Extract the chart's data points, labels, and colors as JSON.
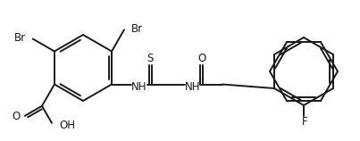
{
  "bg_color": "#ffffff",
  "line_color": "#1a1a1a",
  "line_width": 1.4,
  "font_size": 8.5,
  "fig_width": 4.03,
  "fig_height": 1.58,
  "dpi": 100,
  "xlim": [
    0,
    403
  ],
  "ylim": [
    0,
    158
  ]
}
